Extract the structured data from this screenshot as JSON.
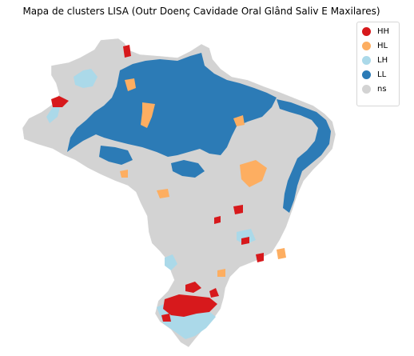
{
  "title": "Mapa de clusters LISA (Outr Doenç Cavidade Oral Glând Saliv E Maxilares)",
  "legend": [
    {
      "label": "HH",
      "color": "#d7191c"
    },
    {
      "label": "HL",
      "color": "#fdae61"
    },
    {
      "label": "LH",
      "color": "#abd9e9"
    },
    {
      "label": "LL",
      "color": "#2c7bb6"
    },
    {
      "label": "ns",
      "color": "#d3d3d3"
    }
  ]
}
